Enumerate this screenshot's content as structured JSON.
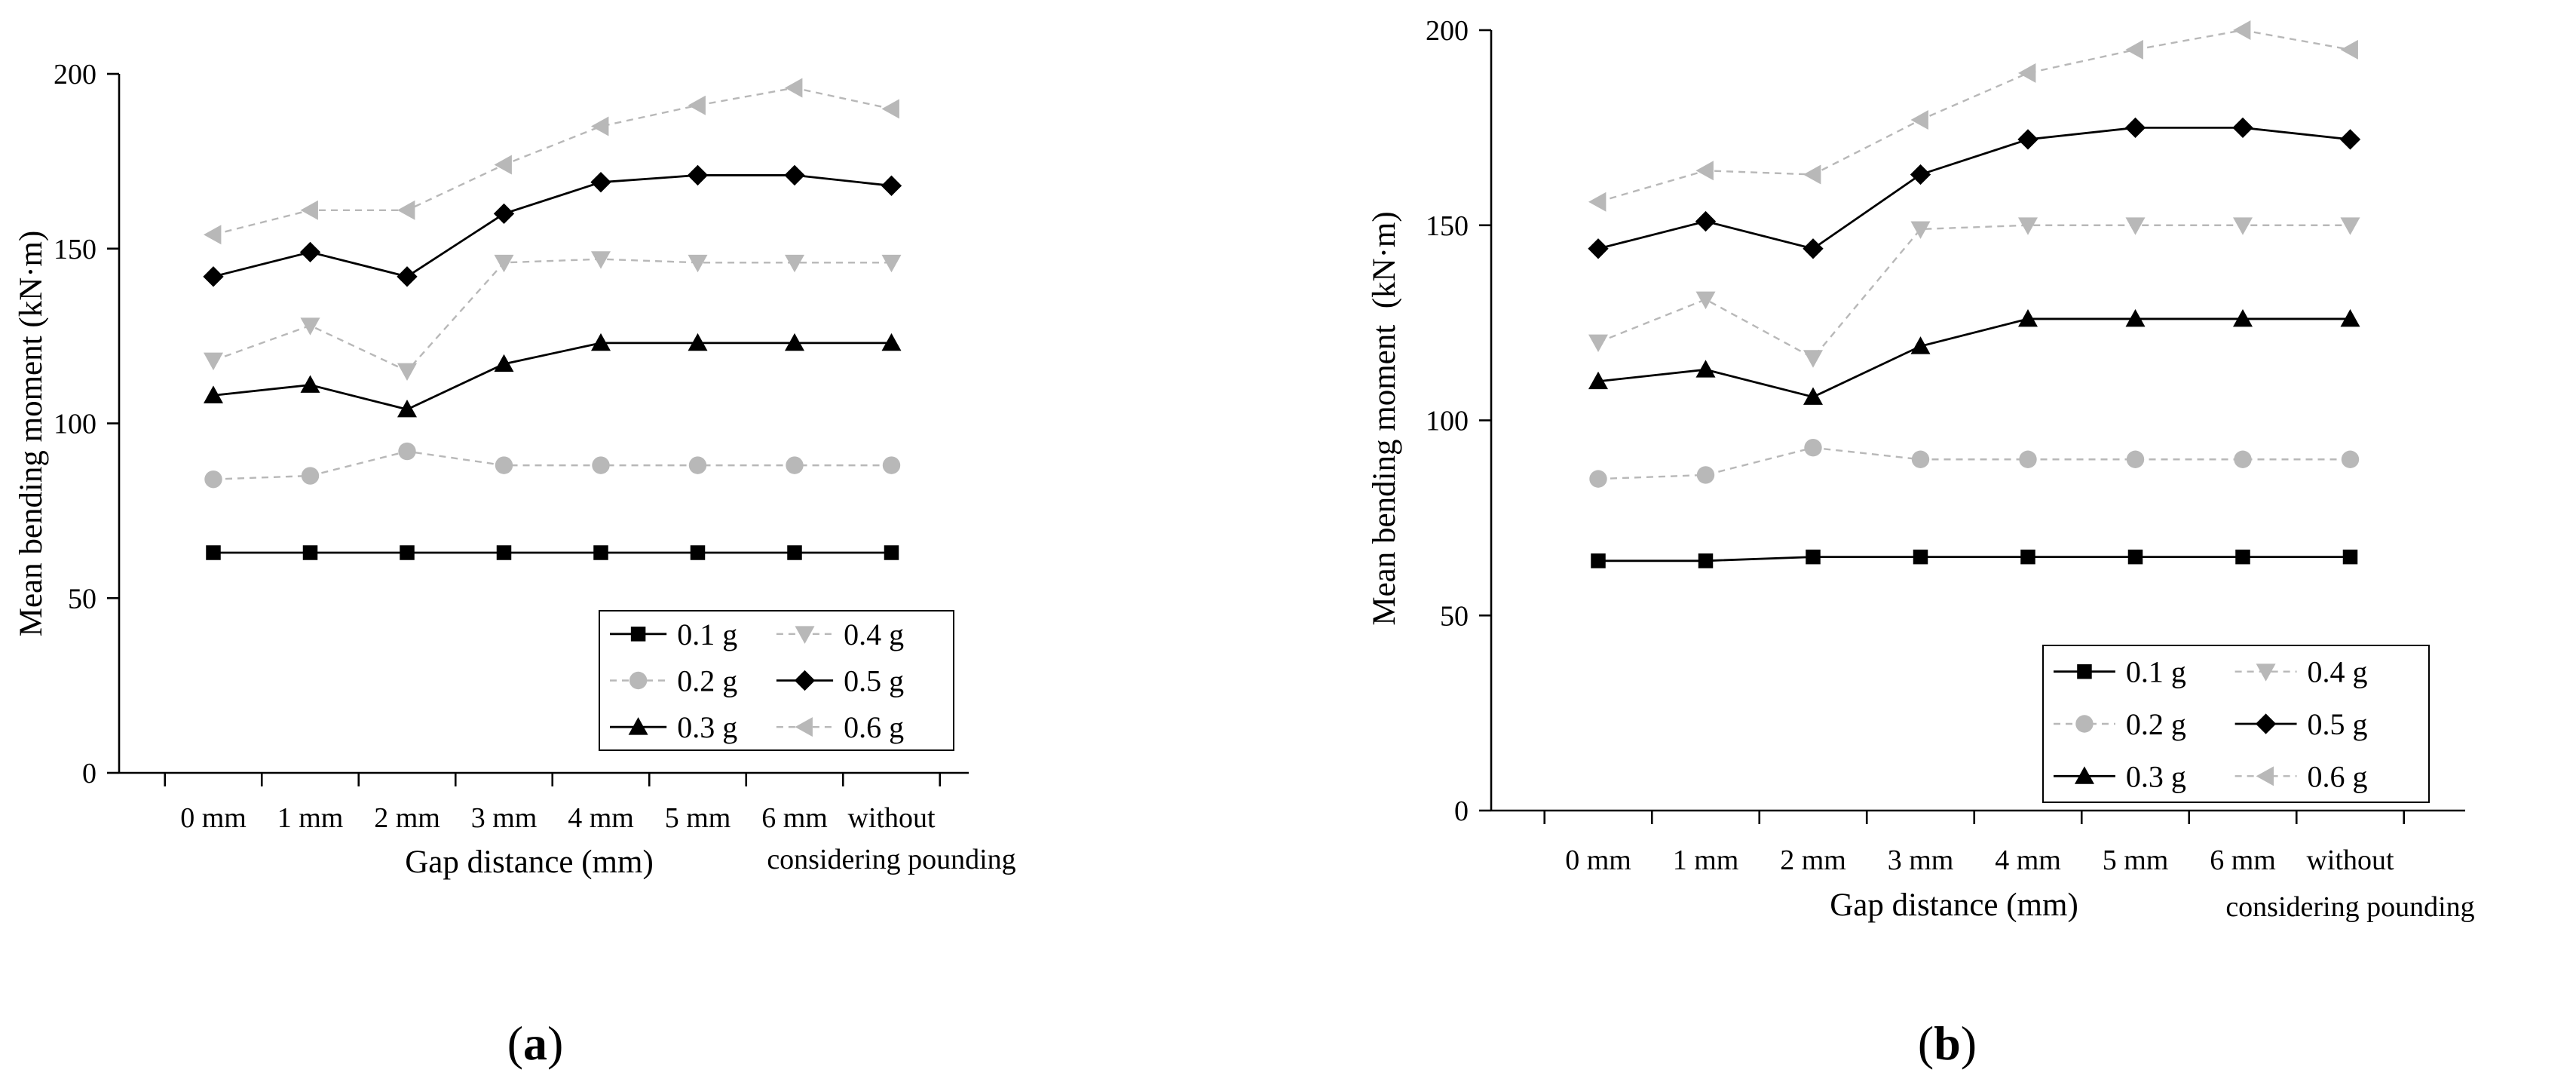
{
  "chart_data": [
    {
      "type": "line",
      "panel_label": "a",
      "title": "",
      "xlabel": "Gap distance (mm)",
      "ylabel": "Mean bending moment (kN·m)",
      "ylim": [
        0,
        200
      ],
      "yticks": [
        "0",
        "50",
        "100",
        "150",
        "200"
      ],
      "categories": [
        "0 mm",
        "1 mm",
        "2 mm",
        "3 mm",
        "4 mm",
        "5 mm",
        "6 mm",
        "without considering pounding"
      ],
      "category_lines": [
        [
          "0 mm"
        ],
        [
          "1 mm"
        ],
        [
          "2 mm"
        ],
        [
          "3 mm"
        ],
        [
          "4 mm"
        ],
        [
          "5 mm"
        ],
        [
          "6 mm"
        ],
        [
          "without",
          "considering pounding"
        ]
      ],
      "legend_position": "bottom-right",
      "series": [
        {
          "name": "0.1 g",
          "marker": "square",
          "color": "#000000",
          "dashed": false,
          "values": [
            63,
            63,
            63,
            63,
            63,
            63,
            63,
            63
          ]
        },
        {
          "name": "0.4 g",
          "marker": "triangle-down",
          "color": "#b8b8b8",
          "dashed": true,
          "values": [
            118,
            128,
            115,
            146,
            147,
            146,
            146,
            146
          ]
        },
        {
          "name": "0.2 g",
          "marker": "circle",
          "color": "#b8b8b8",
          "dashed": true,
          "values": [
            84,
            85,
            92,
            88,
            88,
            88,
            88,
            88
          ]
        },
        {
          "name": "0.5 g",
          "marker": "diamond",
          "color": "#000000",
          "dashed": false,
          "values": [
            142,
            149,
            142,
            160,
            169,
            171,
            171,
            168
          ]
        },
        {
          "name": "0.3 g",
          "marker": "triangle-up",
          "color": "#000000",
          "dashed": false,
          "values": [
            108,
            111,
            104,
            117,
            123,
            123,
            123,
            123
          ]
        },
        {
          "name": "0.6 g",
          "marker": "triangle-left",
          "color": "#b8b8b8",
          "dashed": true,
          "values": [
            154,
            161,
            161,
            174,
            185,
            191,
            196,
            190
          ]
        }
      ]
    },
    {
      "type": "line",
      "panel_label": "b",
      "title": "",
      "xlabel": "Gap distance (mm)",
      "ylabel": "Mean bending moment  (kN·m)",
      "ylim": [
        0,
        200
      ],
      "yticks": [
        "0",
        "50",
        "100",
        "150",
        "200"
      ],
      "categories": [
        "0 mm",
        "1 mm",
        "2 mm",
        "3 mm",
        "4 mm",
        "5 mm",
        "6 mm",
        "without considering pounding"
      ],
      "category_lines": [
        [
          "0 mm"
        ],
        [
          "1 mm"
        ],
        [
          "2 mm"
        ],
        [
          "3 mm"
        ],
        [
          "4 mm"
        ],
        [
          "5 mm"
        ],
        [
          "6 mm"
        ],
        [
          "without",
          "considering pounding"
        ]
      ],
      "legend_position": "bottom-right",
      "series": [
        {
          "name": "0.1 g",
          "marker": "square",
          "color": "#000000",
          "dashed": false,
          "values": [
            64,
            64,
            65,
            65,
            65,
            65,
            65,
            65
          ]
        },
        {
          "name": "0.4 g",
          "marker": "triangle-down",
          "color": "#b8b8b8",
          "dashed": true,
          "values": [
            120,
            131,
            116,
            149,
            150,
            150,
            150,
            150
          ]
        },
        {
          "name": "0.2 g",
          "marker": "circle",
          "color": "#b8b8b8",
          "dashed": true,
          "values": [
            85,
            86,
            93,
            90,
            90,
            90,
            90,
            90
          ]
        },
        {
          "name": "0.5 g",
          "marker": "diamond",
          "color": "#000000",
          "dashed": false,
          "values": [
            144,
            151,
            144,
            163,
            172,
            175,
            175,
            172
          ]
        },
        {
          "name": "0.3 g",
          "marker": "triangle-up",
          "color": "#000000",
          "dashed": false,
          "values": [
            110,
            113,
            106,
            119,
            126,
            126,
            126,
            126
          ]
        },
        {
          "name": "0.6 g",
          "marker": "triangle-left",
          "color": "#b8b8b8",
          "dashed": true,
          "values": [
            156,
            164,
            163,
            177,
            189,
            195,
            200,
            195
          ]
        }
      ]
    }
  ]
}
